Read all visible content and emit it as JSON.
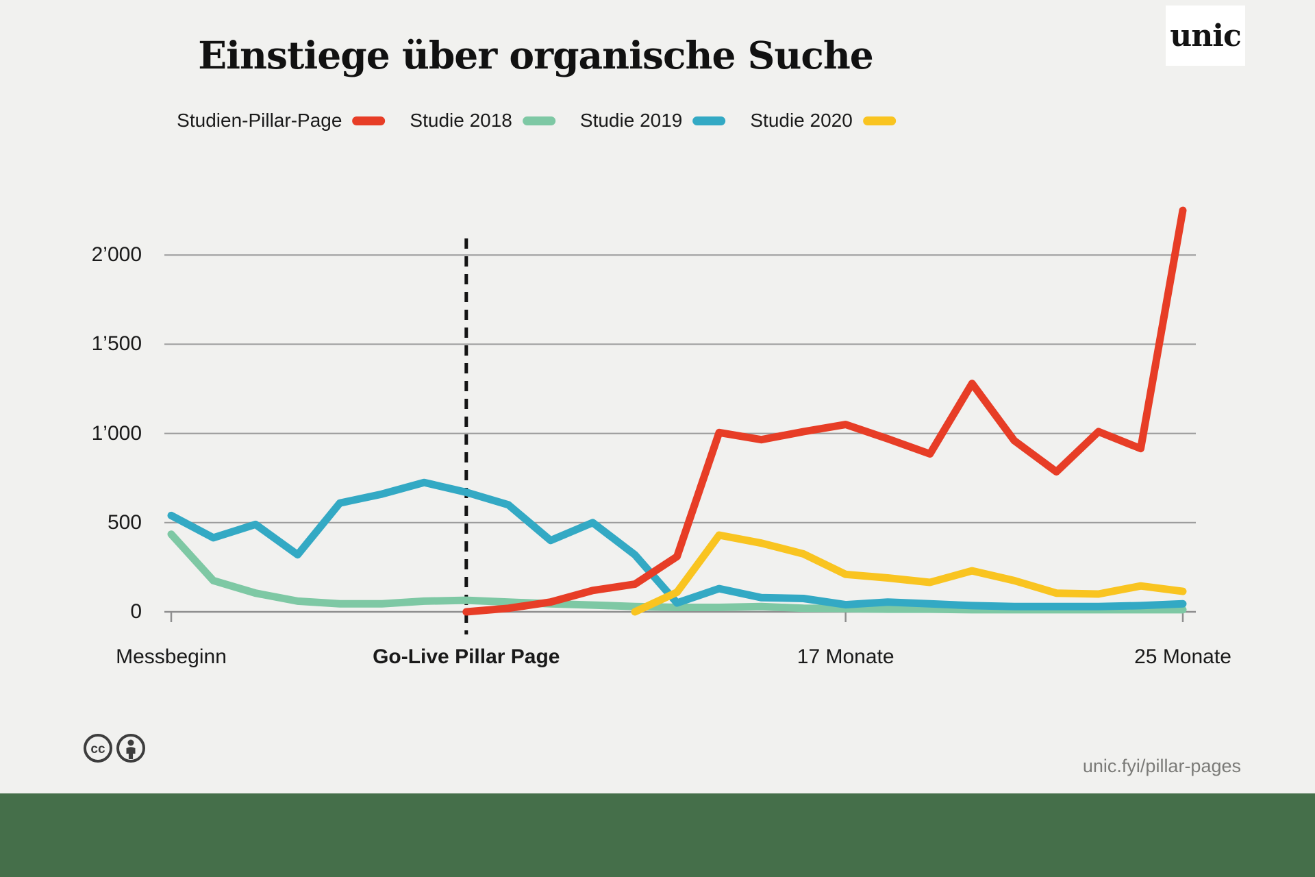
{
  "page": {
    "title": "Einstiege über organische Suche",
    "logo_text": "unic",
    "footer_url": "unic.fyi/pillar-pages",
    "background_color": "#F1F1EF",
    "footer_band_color": "#456F4A"
  },
  "icons": {
    "cc_license": "cc-license-icon",
    "attribution": "attribution-person-icon"
  },
  "chart_data": {
    "type": "line",
    "title": "Einstiege über organische Suche",
    "xlabel": "",
    "ylabel": "",
    "months": [
      1,
      2,
      3,
      4,
      5,
      6,
      7,
      8,
      9,
      10,
      11,
      12,
      13,
      14,
      15,
      16,
      17,
      18,
      19,
      20,
      21,
      22,
      23,
      24,
      25
    ],
    "x_axis_labels": [
      {
        "text": "Messbeginn",
        "month": 1,
        "bold": false
      },
      {
        "text": "Go-Live Pillar Page",
        "month": 8,
        "bold": true
      },
      {
        "text": "17 Monate",
        "month": 17,
        "bold": false
      },
      {
        "text": "25 Monate",
        "month": 25,
        "bold": false
      }
    ],
    "y_ticks": [
      0,
      500,
      1000,
      1500,
      2000
    ],
    "y_tick_labels": [
      "0",
      "500",
      "1’000",
      "1’500",
      "2’000"
    ],
    "ylim": [
      0,
      2300
    ],
    "grid": true,
    "gridline_color": "#9B9B9B",
    "axis_color": "#8F8F8F",
    "annotation": {
      "label": "Go-Live Pillar Page",
      "month": 8,
      "style": "dashed-vertical",
      "color": "#141414"
    },
    "legend_position": "top",
    "series": [
      {
        "name": "Studien-Pillar-Page",
        "color": "#E73D26",
        "values": [
          null,
          null,
          null,
          null,
          null,
          null,
          null,
          0,
          20,
          55,
          120,
          155,
          310,
          1005,
          965,
          1010,
          1050,
          970,
          885,
          1280,
          960,
          785,
          1010,
          915,
          2250
        ]
      },
      {
        "name": "Studie 2018",
        "color": "#7EC8A4",
        "values": [
          435,
          175,
          105,
          60,
          45,
          45,
          60,
          65,
          55,
          45,
          38,
          30,
          25,
          25,
          30,
          20,
          18,
          15,
          15,
          12,
          12,
          12,
          12,
          12,
          12
        ]
      },
      {
        "name": "Studie 2019",
        "color": "#33A9C4",
        "values": [
          540,
          415,
          490,
          320,
          610,
          660,
          725,
          670,
          600,
          400,
          500,
          320,
          50,
          130,
          80,
          75,
          40,
          55,
          45,
          35,
          30,
          30,
          30,
          35,
          45
        ]
      },
      {
        "name": "Studie 2020",
        "color": "#F9C420",
        "values": [
          null,
          null,
          null,
          null,
          null,
          null,
          null,
          null,
          null,
          null,
          null,
          0,
          110,
          430,
          385,
          325,
          210,
          190,
          165,
          230,
          175,
          105,
          100,
          145,
          115
        ]
      }
    ],
    "draw_order": [
      1,
      2,
      3,
      0
    ]
  }
}
